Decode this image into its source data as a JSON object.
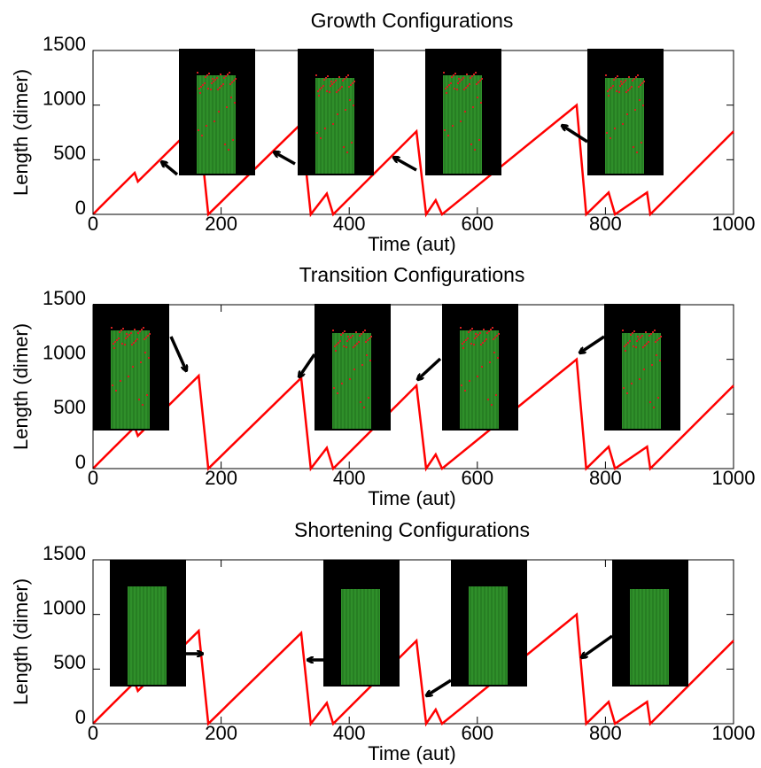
{
  "chart_data": [
    {
      "type": "line",
      "title": "Growth Configurations",
      "xlabel": "Time (aut)",
      "ylabel": "Length (dimer)",
      "xlim": [
        0,
        1000
      ],
      "ylim": [
        0,
        1500
      ],
      "xticks": [
        0,
        200,
        400,
        600,
        800,
        1000
      ],
      "yticks": [
        0,
        500,
        1000,
        1500
      ],
      "series": [
        {
          "color": "#ff0000",
          "x": [
            0,
            10,
            65,
            70,
            165,
            180,
            325,
            340,
            365,
            375,
            505,
            520,
            535,
            545,
            755,
            770,
            805,
            815,
            865,
            870,
            1000
          ],
          "values": [
            0,
            60,
            380,
            300,
            850,
            0,
            830,
            0,
            190,
            0,
            760,
            0,
            130,
            0,
            1000,
            0,
            200,
            0,
            200,
            0,
            760
          ]
        }
      ]
    },
    {
      "type": "line",
      "title": "Transition Configurations",
      "xlabel": "Time (aut)",
      "ylabel": "Length (dimer)",
      "xlim": [
        0,
        1000
      ],
      "ylim": [
        0,
        1500
      ],
      "xticks": [
        0,
        200,
        400,
        600,
        800,
        1000
      ],
      "yticks": [
        0,
        500,
        1000,
        1500
      ],
      "series": [
        {
          "color": "#ff0000",
          "x": [
            0,
            10,
            65,
            70,
            165,
            180,
            325,
            340,
            365,
            375,
            505,
            520,
            535,
            545,
            755,
            770,
            805,
            815,
            865,
            870,
            1000
          ],
          "values": [
            0,
            60,
            380,
            300,
            850,
            0,
            830,
            0,
            190,
            0,
            760,
            0,
            130,
            0,
            1000,
            0,
            200,
            0,
            200,
            0,
            760
          ]
        }
      ]
    },
    {
      "type": "line",
      "title": "Shortening Configurations",
      "xlabel": "Time (aut)",
      "ylabel": "Length (dimer)",
      "xlim": [
        0,
        1000
      ],
      "ylim": [
        0,
        1500
      ],
      "xticks": [
        0,
        200,
        400,
        600,
        800,
        1000
      ],
      "yticks": [
        0,
        500,
        1000,
        1500
      ],
      "series": [
        {
          "color": "#ff0000",
          "x": [
            0,
            10,
            65,
            70,
            165,
            180,
            325,
            340,
            365,
            375,
            505,
            520,
            535,
            545,
            755,
            770,
            805,
            815,
            865,
            870,
            1000
          ],
          "values": [
            0,
            60,
            380,
            300,
            850,
            0,
            830,
            0,
            190,
            0,
            760,
            0,
            130,
            0,
            1000,
            0,
            200,
            0,
            200,
            0,
            760
          ]
        }
      ]
    }
  ]
}
